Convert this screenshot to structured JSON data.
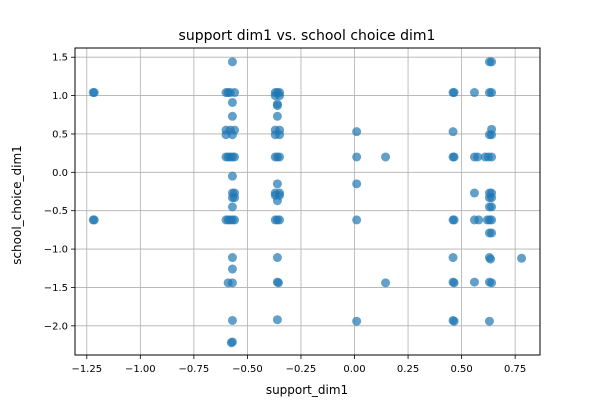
{
  "chart_data": {
    "type": "scatter",
    "title": "support dim1 vs. school choice dim1",
    "xlabel": "support_dim1",
    "ylabel": "school_choice_dim1",
    "xlim": [
      -1.305,
      0.866
    ],
    "ylim": [
      -2.38,
      1.62
    ],
    "xticks": [
      -1.25,
      -1.0,
      -0.75,
      -0.5,
      -0.25,
      0.0,
      0.25,
      0.5,
      0.75
    ],
    "xtick_labels": [
      "−1.25",
      "−1.00",
      "−0.75",
      "−0.50",
      "−0.25",
      "0.00",
      "0.25",
      "0.50",
      "0.75"
    ],
    "yticks": [
      -2.0,
      -1.5,
      -1.0,
      -0.5,
      0.0,
      0.5,
      1.0,
      1.5
    ],
    "ytick_labels": [
      "−2.0",
      "−1.5",
      "−1.0",
      "−0.5",
      "0.0",
      "0.5",
      "1.0",
      "1.5"
    ],
    "grid": true,
    "marker_color": "#1f77b4",
    "points": [
      {
        "x": -1.215,
        "y": 1.04
      },
      {
        "x": -1.22,
        "y": 1.04
      },
      {
        "x": -1.22,
        "y": -0.62
      },
      {
        "x": -1.215,
        "y": -0.62
      },
      {
        "x": -0.6,
        "y": 1.04
      },
      {
        "x": -0.59,
        "y": 1.04
      },
      {
        "x": -0.58,
        "y": 1.04
      },
      {
        "x": -0.56,
        "y": 1.04
      },
      {
        "x": -0.57,
        "y": 1.44
      },
      {
        "x": -0.57,
        "y": 0.91
      },
      {
        "x": -0.57,
        "y": 0.73
      },
      {
        "x": -0.6,
        "y": 0.55
      },
      {
        "x": -0.58,
        "y": 0.55
      },
      {
        "x": -0.56,
        "y": 0.55
      },
      {
        "x": -0.6,
        "y": 0.49
      },
      {
        "x": -0.57,
        "y": 0.49
      },
      {
        "x": -0.6,
        "y": 0.2
      },
      {
        "x": -0.59,
        "y": 0.2
      },
      {
        "x": -0.58,
        "y": 0.2
      },
      {
        "x": -0.57,
        "y": 0.2
      },
      {
        "x": -0.56,
        "y": 0.2
      },
      {
        "x": -0.57,
        "y": -0.05
      },
      {
        "x": -0.57,
        "y": -0.27
      },
      {
        "x": -0.56,
        "y": -0.27
      },
      {
        "x": -0.57,
        "y": -0.33
      },
      {
        "x": -0.56,
        "y": -0.33
      },
      {
        "x": -0.57,
        "y": -0.45
      },
      {
        "x": -0.6,
        "y": -0.62
      },
      {
        "x": -0.59,
        "y": -0.62
      },
      {
        "x": -0.58,
        "y": -0.62
      },
      {
        "x": -0.57,
        "y": -0.62
      },
      {
        "x": -0.56,
        "y": -0.62
      },
      {
        "x": -0.57,
        "y": -1.11
      },
      {
        "x": -0.57,
        "y": -1.26
      },
      {
        "x": -0.59,
        "y": -1.44
      },
      {
        "x": -0.57,
        "y": -1.44
      },
      {
        "x": -0.57,
        "y": -1.93
      },
      {
        "x": -0.57,
        "y": -2.21
      },
      {
        "x": -0.575,
        "y": -2.22
      },
      {
        "x": -0.37,
        "y": 1.04
      },
      {
        "x": -0.36,
        "y": 1.04
      },
      {
        "x": -0.35,
        "y": 1.04
      },
      {
        "x": -0.37,
        "y": 1.0
      },
      {
        "x": -0.35,
        "y": 1.0
      },
      {
        "x": -0.36,
        "y": 0.89
      },
      {
        "x": -0.36,
        "y": 0.87
      },
      {
        "x": -0.36,
        "y": 0.73
      },
      {
        "x": -0.37,
        "y": 0.55
      },
      {
        "x": -0.35,
        "y": 0.55
      },
      {
        "x": -0.37,
        "y": 0.49
      },
      {
        "x": -0.35,
        "y": 0.49
      },
      {
        "x": -0.37,
        "y": 0.2
      },
      {
        "x": -0.36,
        "y": 0.2
      },
      {
        "x": -0.35,
        "y": 0.2
      },
      {
        "x": -0.36,
        "y": -0.15
      },
      {
        "x": -0.37,
        "y": -0.27
      },
      {
        "x": -0.35,
        "y": -0.27
      },
      {
        "x": -0.37,
        "y": -0.3
      },
      {
        "x": -0.35,
        "y": -0.3
      },
      {
        "x": -0.36,
        "y": -0.37
      },
      {
        "x": -0.37,
        "y": -0.62
      },
      {
        "x": -0.36,
        "y": -0.62
      },
      {
        "x": -0.35,
        "y": -0.62
      },
      {
        "x": -0.36,
        "y": -1.11
      },
      {
        "x": -0.36,
        "y": -1.43
      },
      {
        "x": -0.355,
        "y": -1.44
      },
      {
        "x": -0.36,
        "y": -1.92
      },
      {
        "x": 0.01,
        "y": 0.53
      },
      {
        "x": 0.01,
        "y": 0.2
      },
      {
        "x": 0.01,
        "y": -0.15
      },
      {
        "x": 0.01,
        "y": -0.62
      },
      {
        "x": 0.01,
        "y": -1.94
      },
      {
        "x": 0.145,
        "y": 0.2
      },
      {
        "x": 0.145,
        "y": -1.44
      },
      {
        "x": 0.46,
        "y": 1.04
      },
      {
        "x": 0.465,
        "y": 1.04
      },
      {
        "x": 0.46,
        "y": 0.53
      },
      {
        "x": 0.46,
        "y": 0.2
      },
      {
        "x": 0.465,
        "y": 0.2
      },
      {
        "x": 0.46,
        "y": -0.62
      },
      {
        "x": 0.465,
        "y": -0.62
      },
      {
        "x": 0.46,
        "y": -1.11
      },
      {
        "x": 0.46,
        "y": -1.43
      },
      {
        "x": 0.465,
        "y": -1.44
      },
      {
        "x": 0.46,
        "y": -1.93
      },
      {
        "x": 0.465,
        "y": -1.94
      },
      {
        "x": 0.56,
        "y": 1.04
      },
      {
        "x": 0.56,
        "y": 0.2
      },
      {
        "x": 0.575,
        "y": 0.2
      },
      {
        "x": 0.56,
        "y": -0.27
      },
      {
        "x": 0.56,
        "y": -0.62
      },
      {
        "x": 0.58,
        "y": -0.62
      },
      {
        "x": 0.56,
        "y": -1.43
      },
      {
        "x": 0.63,
        "y": 1.44
      },
      {
        "x": 0.64,
        "y": 1.44
      },
      {
        "x": 0.63,
        "y": 1.04
      },
      {
        "x": 0.64,
        "y": 1.04
      },
      {
        "x": 0.64,
        "y": 0.56
      },
      {
        "x": 0.63,
        "y": 0.49
      },
      {
        "x": 0.64,
        "y": 0.49
      },
      {
        "x": 0.61,
        "y": 0.2
      },
      {
        "x": 0.625,
        "y": 0.2
      },
      {
        "x": 0.64,
        "y": 0.2
      },
      {
        "x": 0.63,
        "y": -0.27
      },
      {
        "x": 0.64,
        "y": -0.27
      },
      {
        "x": 0.63,
        "y": -0.33
      },
      {
        "x": 0.64,
        "y": -0.33
      },
      {
        "x": 0.63,
        "y": -0.45
      },
      {
        "x": 0.64,
        "y": -0.45
      },
      {
        "x": 0.62,
        "y": -0.62
      },
      {
        "x": 0.63,
        "y": -0.62
      },
      {
        "x": 0.64,
        "y": -0.62
      },
      {
        "x": 0.63,
        "y": -0.79
      },
      {
        "x": 0.64,
        "y": -0.79
      },
      {
        "x": 0.63,
        "y": -1.11
      },
      {
        "x": 0.635,
        "y": -1.13
      },
      {
        "x": 0.63,
        "y": -1.43
      },
      {
        "x": 0.64,
        "y": -1.44
      },
      {
        "x": 0.63,
        "y": -1.94
      },
      {
        "x": 0.78,
        "y": -1.12
      }
    ]
  }
}
